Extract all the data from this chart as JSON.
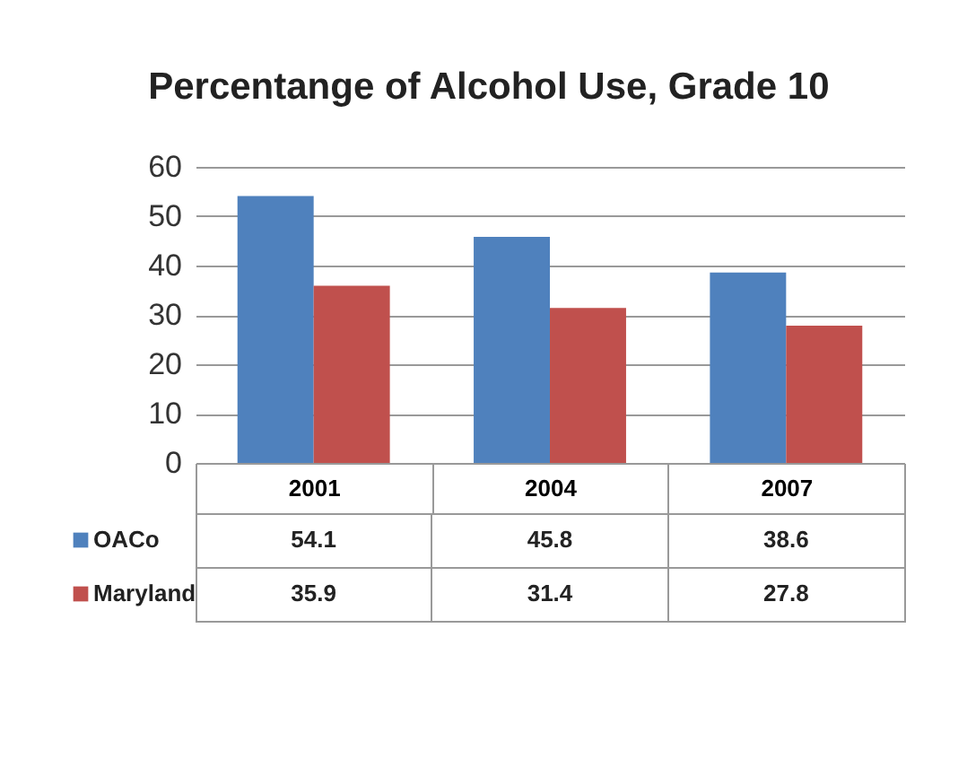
{
  "chart_data": {
    "type": "bar",
    "title": "Percentange of Alcohol Use,\nGrade 10",
    "categories": [
      "2001",
      "2004",
      "2007"
    ],
    "series": [
      {
        "name": "OACo",
        "color": "#4f81bd",
        "values": [
          54.1,
          45.8,
          38.6
        ]
      },
      {
        "name": "Maryland",
        "color": "#c0504d",
        "values": [
          35.9,
          31.4,
          27.8
        ]
      }
    ],
    "ylim": [
      0,
      60
    ],
    "yticks": [
      0,
      10,
      20,
      30,
      40,
      50,
      60
    ],
    "grid": "y",
    "legend": "bottom",
    "data_labels": true
  }
}
